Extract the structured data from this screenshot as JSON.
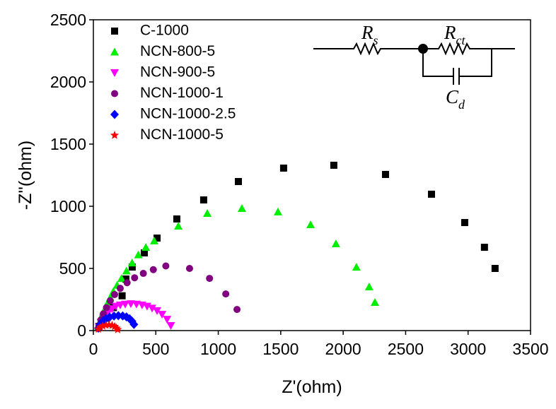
{
  "chart_data": {
    "type": "scatter",
    "x_label": "Z'(ohm)",
    "y_label": "-Z''(ohm)",
    "xlim": [
      0,
      3500
    ],
    "xticks": [
      0,
      500,
      1000,
      1500,
      2000,
      2500,
      3000,
      3500
    ],
    "ylim": [
      0,
      2500
    ],
    "yticks": [
      0,
      500,
      1000,
      1500,
      2000,
      2500
    ],
    "legend": "upper left",
    "series": [
      {
        "name": "C-1000",
        "color": "#000000",
        "marker": "square",
        "x": [
          45,
          100,
          160,
          230,
          260,
          311,
          408,
          510,
          668,
          883,
          1161,
          1523,
          1925,
          2339,
          2707,
          2973,
          3131,
          3216
        ],
        "values": [
          34,
          100,
          185,
          280,
          415,
          511,
          625,
          744,
          898,
          1051,
          1199,
          1307,
          1330,
          1256,
          1097,
          869,
          670,
          500
        ]
      },
      {
        "name": "NCN-800-5",
        "color": "#00ee00",
        "marker": "triangle-up",
        "x": [
          40,
          55,
          70,
          90,
          110,
          135,
          160,
          190,
          225,
          265,
          310,
          360,
          420,
          487,
          680,
          912,
          1189,
          1478,
          1739,
          1942,
          2106,
          2208,
          2254
        ],
        "values": [
          35,
          80,
          125,
          170,
          215,
          265,
          315,
          365,
          420,
          480,
          545,
          610,
          670,
          722,
          841,
          943,
          983,
          955,
          852,
          699,
          511,
          352,
          227
        ]
      },
      {
        "name": "NCN-900-5",
        "color": "#ff00ff",
        "marker": "triangle-down",
        "x": [
          45,
          60,
          80,
          100,
          125,
          150,
          180,
          215,
          255,
          300,
          345,
          390,
          430,
          470,
          510,
          550,
          590,
          620
        ],
        "values": [
          30,
          65,
          100,
          130,
          155,
          175,
          195,
          205,
          212,
          215,
          212,
          205,
          195,
          180,
          160,
          130,
          90,
          40
        ]
      },
      {
        "name": "NCN-1000-1",
        "color": "#800080",
        "marker": "circle",
        "x": [
          45,
          60,
          80,
          105,
          135,
          170,
          215,
          270,
          330,
          400,
          480,
          580,
          770,
          930,
          1060,
          1150
        ],
        "values": [
          40,
          85,
          135,
          185,
          240,
          290,
          340,
          385,
          425,
          460,
          490,
          520,
          500,
          420,
          295,
          170
        ]
      },
      {
        "name": "NCN-1000-2.5",
        "color": "#0000ff",
        "marker": "diamond",
        "x": [
          40,
          55,
          75,
          100,
          130,
          165,
          200,
          235,
          265,
          290,
          310,
          325
        ],
        "values": [
          20,
          50,
          75,
          95,
          108,
          117,
          120,
          118,
          110,
          95,
          75,
          50
        ]
      },
      {
        "name": "NCN-1000-5",
        "color": "#ff0000",
        "marker": "star",
        "x": [
          40,
          55,
          75,
          100,
          125,
          150,
          170,
          185,
          195
        ],
        "values": [
          12,
          25,
          37,
          44,
          46,
          42,
          33,
          20,
          8
        ]
      }
    ],
    "annotations": [
      {
        "text": "R",
        "sub": "s"
      },
      {
        "text": "R",
        "sub": "ct"
      },
      {
        "text": "C",
        "sub": "d"
      }
    ]
  }
}
